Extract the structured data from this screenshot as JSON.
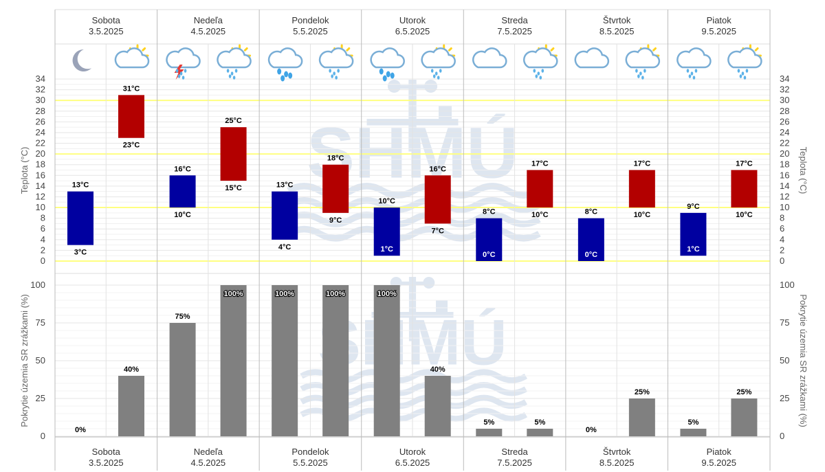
{
  "chart_data": {
    "type": "bar",
    "days": [
      {
        "name": "Sobota",
        "date": "3.5.2025",
        "icons": [
          "moon-icon",
          "sun-cloud-icon"
        ]
      },
      {
        "name": "Nedeľa",
        "date": "4.5.2025",
        "icons": [
          "thunderstorm-icon",
          "sun-cloud-rain-icon"
        ]
      },
      {
        "name": "Pondelok",
        "date": "5.5.2025",
        "icons": [
          "cloud-rain-icon",
          "sun-cloud-rain-icon"
        ]
      },
      {
        "name": "Utorok",
        "date": "6.5.2025",
        "icons": [
          "cloud-rain-icon",
          "sun-cloud-rain-icon"
        ]
      },
      {
        "name": "Streda",
        "date": "7.5.2025",
        "icons": [
          "moon-cloud-icon",
          "sun-cloud-rain-icon"
        ]
      },
      {
        "name": "Štvrtok",
        "date": "8.5.2025",
        "icons": [
          "cloud-icon",
          "sun-cloud-rain-icon"
        ]
      },
      {
        "name": "Piatok",
        "date": "9.5.2025",
        "icons": [
          "moon-cloud-rain-icon",
          "sun-cloud-rain-icon"
        ]
      }
    ],
    "temperature": {
      "ylabel": "Teplota (°C)",
      "ylim": [
        0,
        34
      ],
      "ticks": [
        0,
        2,
        4,
        6,
        8,
        10,
        12,
        14,
        16,
        18,
        20,
        22,
        24,
        26,
        28,
        30,
        32,
        34
      ],
      "highlight_lines": [
        0,
        10,
        20,
        30
      ],
      "series": [
        {
          "name": "night",
          "color": "#0000a0",
          "min": [
            3,
            10,
            4,
            1,
            0,
            0,
            1
          ],
          "max": [
            13,
            16,
            13,
            10,
            8,
            8,
            9
          ]
        },
        {
          "name": "day",
          "color": "#b30000",
          "min": [
            23,
            15,
            9,
            7,
            10,
            10,
            10
          ],
          "max": [
            31,
            25,
            18,
            16,
            17,
            17,
            17
          ]
        }
      ],
      "unit": "°C"
    },
    "precipitation": {
      "ylabel": "Pokrytie územia SR zrážkami (%)",
      "ylim": [
        0,
        100
      ],
      "ticks": [
        0,
        25,
        50,
        75,
        100
      ],
      "color": "#808080",
      "series": [
        {
          "name": "night",
          "values": [
            0,
            75,
            100,
            100,
            5,
            0,
            5
          ]
        },
        {
          "name": "day",
          "values": [
            40,
            100,
            100,
            40,
            5,
            25,
            25
          ]
        }
      ],
      "unit": "%"
    },
    "watermark": "SHMÚ",
    "colors": {
      "highlight": "#ffff80",
      "grid": "#e6e6e6",
      "divider": "#bbbbbb"
    }
  }
}
